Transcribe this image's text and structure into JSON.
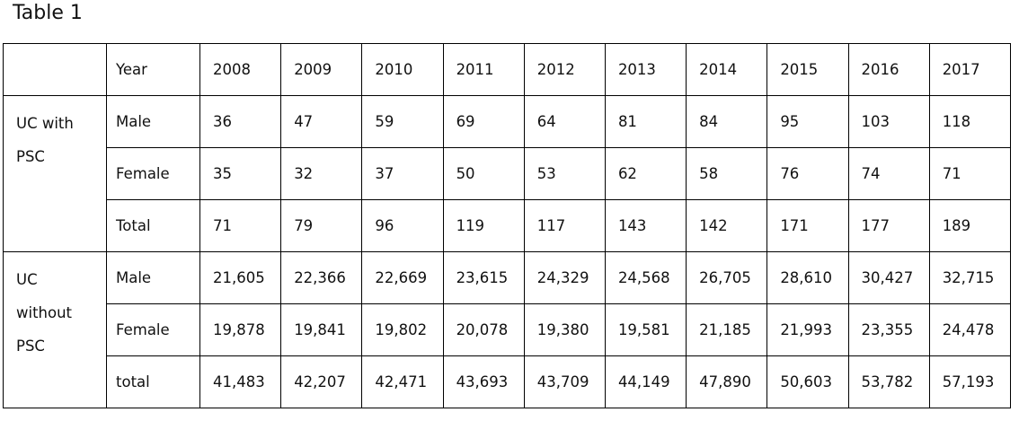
{
  "title": "Table 1",
  "table": {
    "header": {
      "label": "Year",
      "years": [
        "2008",
        "2009",
        "2010",
        "2011",
        "2012",
        "2013",
        "2014",
        "2015",
        "2016",
        "2017"
      ]
    },
    "groups": [
      {
        "label": "UC with PSC",
        "rows": [
          {
            "label": "Male",
            "values": [
              "36",
              "47",
              "59",
              "69",
              "64",
              "81",
              "84",
              "95",
              "103",
              "118"
            ]
          },
          {
            "label": "Female",
            "values": [
              "35",
              "32",
              "37",
              "50",
              "53",
              "62",
              "58",
              "76",
              "74",
              "71"
            ]
          },
          {
            "label": "Total",
            "values": [
              "71",
              "79",
              "96",
              "119",
              "117",
              "143",
              "142",
              "171",
              "177",
              "189"
            ]
          }
        ]
      },
      {
        "label": "UC without PSC",
        "rows": [
          {
            "label": "Male",
            "values": [
              "21,605",
              "22,366",
              "22,669",
              "23,615",
              "24,329",
              "24,568",
              "26,705",
              "28,610",
              "30,427",
              "32,715"
            ]
          },
          {
            "label": "Female",
            "values": [
              "19,878",
              "19,841",
              "19,802",
              "20,078",
              "19,380",
              "19,581",
              "21,185",
              "21,993",
              "23,355",
              "24,478"
            ]
          },
          {
            "label": "total",
            "values": [
              "41,483",
              "42,207",
              "42,471",
              "43,693",
              "43,709",
              "44,149",
              "47,890",
              "50,603",
              "53,782",
              "57,193"
            ]
          }
        ]
      }
    ]
  }
}
